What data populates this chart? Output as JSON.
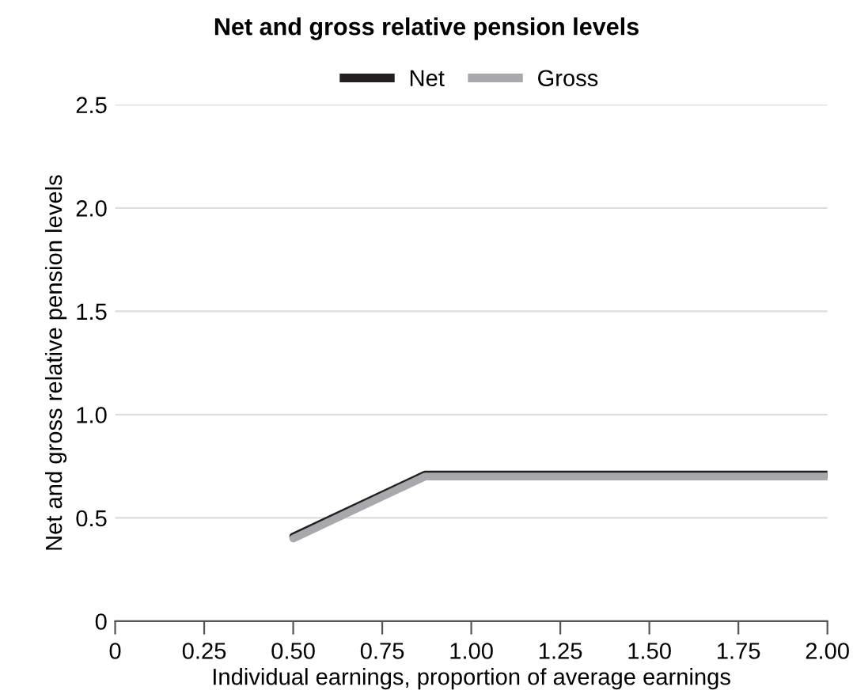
{
  "chart_data": {
    "type": "line",
    "title": "Net and gross relative pension levels",
    "xlabel": "Individual earnings, proportion of average earnings",
    "ylabel": "Net and gross relative pension levels",
    "x": [
      0.5,
      0.87,
      2.0
    ],
    "series": [
      {
        "name": "Net",
        "color": "#231f20",
        "values": [
          0.41,
          0.71,
          0.71
        ]
      },
      {
        "name": "Gross",
        "color": "#a7a9ac",
        "values": [
          0.4,
          0.7,
          0.7
        ]
      }
    ],
    "xlim": [
      0,
      2.0
    ],
    "ylim": [
      0,
      2.5
    ],
    "xticks": [
      0,
      0.25,
      {
        "value": 0.5,
        "label": "0.50"
      },
      0.75,
      {
        "value": 1.0,
        "label": "1.00"
      },
      1.25,
      {
        "value": 1.5,
        "label": "1.50"
      },
      1.75,
      {
        "value": 2.0,
        "label": "2.00"
      }
    ],
    "yticks": [
      0,
      0.5,
      {
        "value": 1,
        "label": "1.0"
      },
      1.5,
      {
        "value": 2,
        "label": "2.0"
      },
      2.5
    ],
    "grid": "y",
    "legend": "top",
    "marker": "none",
    "line_style": "solid"
  }
}
